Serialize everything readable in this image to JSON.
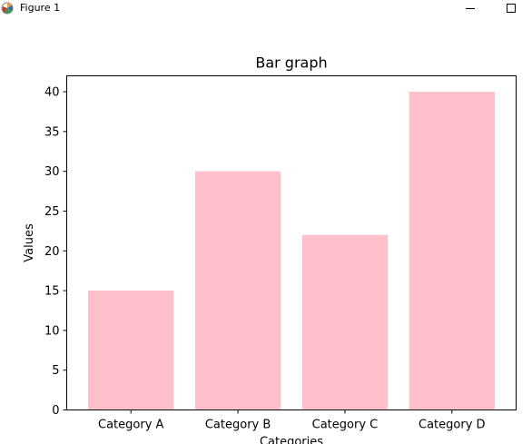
{
  "window": {
    "title": "Figure 1",
    "minimize_icon": "minimize-icon",
    "maximize_icon": "maximize-icon"
  },
  "chart_data": {
    "type": "bar",
    "title": "Bar graph",
    "xlabel": "Categories",
    "ylabel": "Values",
    "categories": [
      "Category A",
      "Category B",
      "Category C",
      "Category D"
    ],
    "values": [
      15,
      30,
      22,
      40
    ],
    "ylim": [
      0,
      42
    ],
    "yticks": [
      "0",
      "5",
      "10",
      "15",
      "20",
      "25",
      "30",
      "35",
      "40"
    ],
    "bar_color": "#ffc0cb",
    "grid": false,
    "legend": "none"
  }
}
